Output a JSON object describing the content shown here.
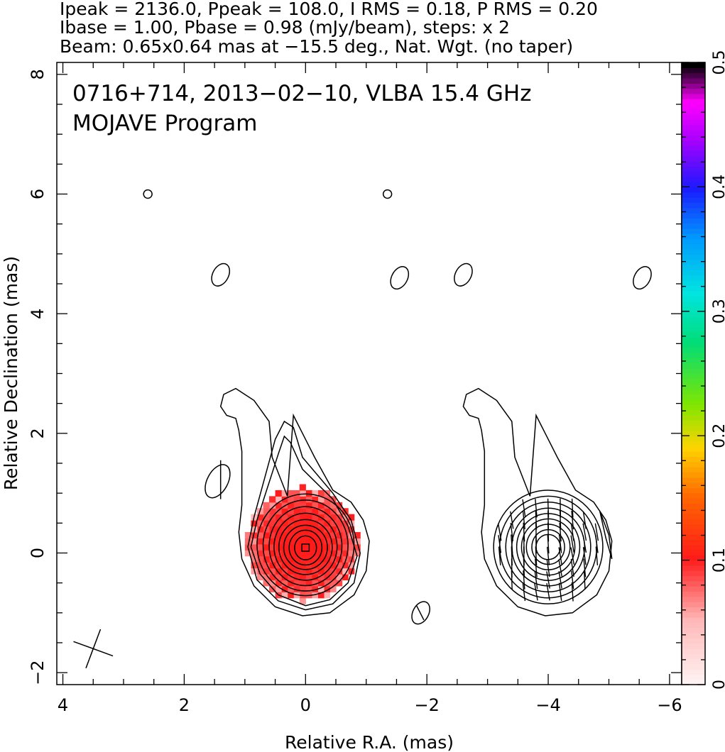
{
  "header": {
    "line1": "Ipeak = 2136.0, Ppeak = 108.0, I RMS = 0.18, P RMS = 0.20",
    "line2": "Ibase = 1.00, Pbase = 0.98 (mJy/beam), steps: x 2",
    "line3": "Beam: 0.65x0.64 mas at −15.5 deg., Nat. Wgt. (no taper)"
  },
  "chart_data": {
    "type": "heatmap",
    "title": "0716+714, 2013−02−10, VLBA 15.4 GHz",
    "subtitle": "MOJAVE Program",
    "xlabel": "Relative R.A. (mas)",
    "ylabel": "Relative Declination (mas)",
    "xlim": [
      4.1,
      -6.2
    ],
    "ylim": [
      -2.2,
      8.2
    ],
    "xticks": [
      4,
      2,
      0,
      -2,
      -4,
      -6
    ],
    "xtick_labels": [
      "4",
      "2",
      "0",
      "−2",
      "−4",
      "−6"
    ],
    "yticks": [
      -2,
      0,
      2,
      4,
      6,
      8
    ],
    "ytick_labels": [
      "−2",
      "0",
      "2",
      "4",
      "6",
      "8"
    ],
    "colorbar": {
      "range": [
        0,
        0.5
      ],
      "ticks": [
        0,
        0.1,
        0.2,
        0.3,
        0.4,
        0.5
      ],
      "tick_labels": [
        "0",
        "0.1",
        "0.2",
        "0.3",
        "0.4",
        "0.5"
      ]
    },
    "core_position": [
      0,
      0.1
    ],
    "left_panel_center": [
      0,
      0
    ],
    "right_panel_center": [
      -4,
      0
    ],
    "contour_levels_mJy": [
      1,
      2,
      4,
      8,
      16,
      32,
      64,
      128,
      256,
      512,
      1024,
      2048
    ],
    "noise_blobs": [
      [
        2.6,
        6.0
      ],
      [
        -1.35,
        6.0
      ],
      [
        1.4,
        4.65
      ],
      [
        -1.55,
        4.6
      ],
      [
        -2.6,
        4.65
      ],
      [
        -5.55,
        4.6
      ],
      [
        1.45,
        1.2
      ],
      [
        -1.9,
        -1.0
      ]
    ],
    "beam": {
      "major_mas": 0.65,
      "minor_mas": 0.64,
      "pa_deg": -15.5,
      "center": [
        3.5,
        -1.6
      ]
    }
  }
}
